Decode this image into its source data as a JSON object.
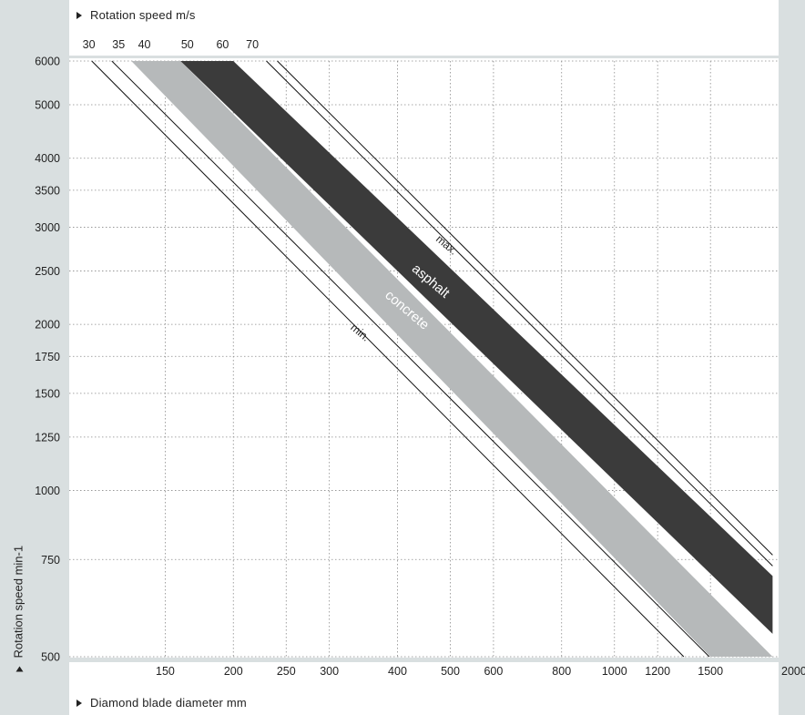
{
  "top_axis_title": "Rotation speed m/s",
  "bottom_axis_title": "Diamond blade diameter mm",
  "left_axis_title": "Rotation speed min-1",
  "colors": {
    "background": "#d9dfe0",
    "asphalt": "#3b3b3b",
    "concrete": "#b6b9ba",
    "line": "#111111",
    "grid": "#8a8a8a"
  },
  "chart_data": {
    "type": "line",
    "xlabel": "Diamond blade diameter mm",
    "ylabel": "Rotation speed min-1",
    "x2label": "Rotation speed m/s",
    "x_scale": "log",
    "y_scale": "log",
    "xlim": [
      100,
      2000
    ],
    "ylim": [
      500,
      6000
    ],
    "x_tick_labels": [
      "150",
      "200",
      "250",
      "300",
      "400",
      "500",
      "600",
      "800",
      "1000",
      "1200",
      "1500",
      "2000"
    ],
    "y_tick_labels": [
      "500",
      "750",
      "1000",
      "1250",
      "1500",
      "1750",
      "2000",
      "2500",
      "3000",
      "3500",
      "4000",
      "5000",
      "6000"
    ],
    "top_tick_labels": [
      "30",
      "35",
      "40",
      "50",
      "60",
      "70"
    ],
    "grid": true,
    "series": [
      {
        "name": "min.",
        "speed_m_s": 35,
        "points": [
          [
            110,
            6000
          ],
          [
            1340,
            500
          ]
        ]
      },
      {
        "name": "concrete",
        "speed_m_s_range": [
          40,
          50
        ],
        "points_low": [
          [
            130,
            6000
          ],
          [
            1500,
            500
          ]
        ],
        "points_high": [
          [
            160,
            6000
          ],
          [
            1950,
            500
          ]
        ]
      },
      {
        "name": "asphalt",
        "speed_m_s_range": [
          50,
          60
        ],
        "points_low": [
          [
            160,
            6000
          ],
          [
            1950,
            550
          ]
        ],
        "points_high": [
          [
            200,
            6000
          ],
          [
            1950,
            700
          ]
        ]
      },
      {
        "name": "max.",
        "speed_m_s": 70,
        "points": [
          [
            230,
            6000
          ],
          [
            1950,
            730
          ]
        ]
      }
    ],
    "annotations": [
      "max.",
      "asphalt",
      "concrete",
      "min."
    ]
  }
}
